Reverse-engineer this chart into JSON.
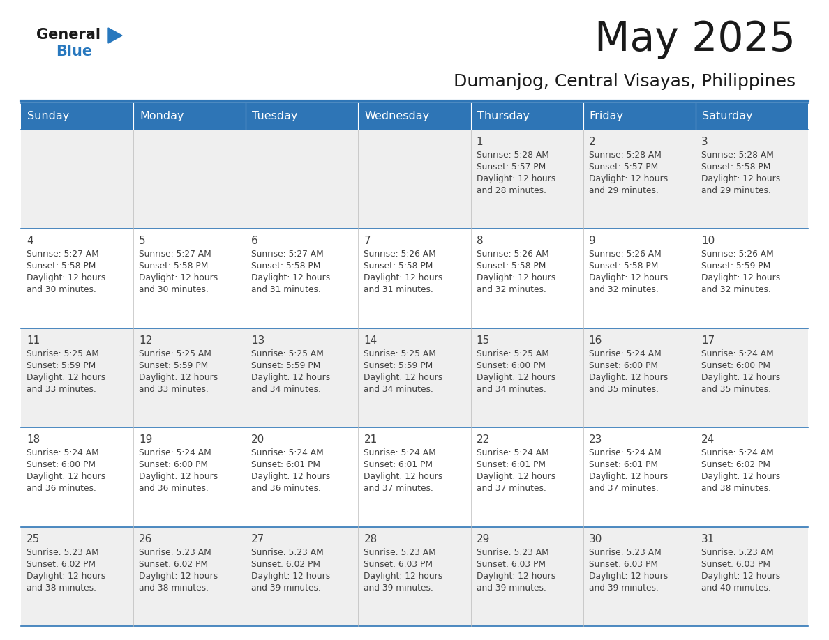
{
  "title": "May 2025",
  "subtitle": "Dumanjog, Central Visayas, Philippines",
  "header_bg": "#2E75B6",
  "header_text_color": "#FFFFFF",
  "day_names": [
    "Sunday",
    "Monday",
    "Tuesday",
    "Wednesday",
    "Thursday",
    "Friday",
    "Saturday"
  ],
  "row0_bg": "#EFEFEF",
  "row1_bg": "#FFFFFF",
  "cell_text_color": "#404040",
  "border_color": "#2E75B6",
  "title_color": "#1a1a1a",
  "subtitle_color": "#1a1a1a",
  "logo_general_color": "#1a1a1a",
  "logo_blue_color": "#2878BE",
  "calendar_data": [
    [
      null,
      null,
      null,
      null,
      {
        "day": 1,
        "sunrise": "5:28 AM",
        "sunset": "5:57 PM",
        "daylight": "12 hours and 28 minutes."
      },
      {
        "day": 2,
        "sunrise": "5:28 AM",
        "sunset": "5:57 PM",
        "daylight": "12 hours and 29 minutes."
      },
      {
        "day": 3,
        "sunrise": "5:28 AM",
        "sunset": "5:58 PM",
        "daylight": "12 hours and 29 minutes."
      }
    ],
    [
      {
        "day": 4,
        "sunrise": "5:27 AM",
        "sunset": "5:58 PM",
        "daylight": "12 hours and 30 minutes."
      },
      {
        "day": 5,
        "sunrise": "5:27 AM",
        "sunset": "5:58 PM",
        "daylight": "12 hours and 30 minutes."
      },
      {
        "day": 6,
        "sunrise": "5:27 AM",
        "sunset": "5:58 PM",
        "daylight": "12 hours and 31 minutes."
      },
      {
        "day": 7,
        "sunrise": "5:26 AM",
        "sunset": "5:58 PM",
        "daylight": "12 hours and 31 minutes."
      },
      {
        "day": 8,
        "sunrise": "5:26 AM",
        "sunset": "5:58 PM",
        "daylight": "12 hours and 32 minutes."
      },
      {
        "day": 9,
        "sunrise": "5:26 AM",
        "sunset": "5:58 PM",
        "daylight": "12 hours and 32 minutes."
      },
      {
        "day": 10,
        "sunrise": "5:26 AM",
        "sunset": "5:59 PM",
        "daylight": "12 hours and 32 minutes."
      }
    ],
    [
      {
        "day": 11,
        "sunrise": "5:25 AM",
        "sunset": "5:59 PM",
        "daylight": "12 hours and 33 minutes."
      },
      {
        "day": 12,
        "sunrise": "5:25 AM",
        "sunset": "5:59 PM",
        "daylight": "12 hours and 33 minutes."
      },
      {
        "day": 13,
        "sunrise": "5:25 AM",
        "sunset": "5:59 PM",
        "daylight": "12 hours and 34 minutes."
      },
      {
        "day": 14,
        "sunrise": "5:25 AM",
        "sunset": "5:59 PM",
        "daylight": "12 hours and 34 minutes."
      },
      {
        "day": 15,
        "sunrise": "5:25 AM",
        "sunset": "6:00 PM",
        "daylight": "12 hours and 34 minutes."
      },
      {
        "day": 16,
        "sunrise": "5:24 AM",
        "sunset": "6:00 PM",
        "daylight": "12 hours and 35 minutes."
      },
      {
        "day": 17,
        "sunrise": "5:24 AM",
        "sunset": "6:00 PM",
        "daylight": "12 hours and 35 minutes."
      }
    ],
    [
      {
        "day": 18,
        "sunrise": "5:24 AM",
        "sunset": "6:00 PM",
        "daylight": "12 hours and 36 minutes."
      },
      {
        "day": 19,
        "sunrise": "5:24 AM",
        "sunset": "6:00 PM",
        "daylight": "12 hours and 36 minutes."
      },
      {
        "day": 20,
        "sunrise": "5:24 AM",
        "sunset": "6:01 PM",
        "daylight": "12 hours and 36 minutes."
      },
      {
        "day": 21,
        "sunrise": "5:24 AM",
        "sunset": "6:01 PM",
        "daylight": "12 hours and 37 minutes."
      },
      {
        "day": 22,
        "sunrise": "5:24 AM",
        "sunset": "6:01 PM",
        "daylight": "12 hours and 37 minutes."
      },
      {
        "day": 23,
        "sunrise": "5:24 AM",
        "sunset": "6:01 PM",
        "daylight": "12 hours and 37 minutes."
      },
      {
        "day": 24,
        "sunrise": "5:24 AM",
        "sunset": "6:02 PM",
        "daylight": "12 hours and 38 minutes."
      }
    ],
    [
      {
        "day": 25,
        "sunrise": "5:23 AM",
        "sunset": "6:02 PM",
        "daylight": "12 hours and 38 minutes."
      },
      {
        "day": 26,
        "sunrise": "5:23 AM",
        "sunset": "6:02 PM",
        "daylight": "12 hours and 38 minutes."
      },
      {
        "day": 27,
        "sunrise": "5:23 AM",
        "sunset": "6:02 PM",
        "daylight": "12 hours and 39 minutes."
      },
      {
        "day": 28,
        "sunrise": "5:23 AM",
        "sunset": "6:03 PM",
        "daylight": "12 hours and 39 minutes."
      },
      {
        "day": 29,
        "sunrise": "5:23 AM",
        "sunset": "6:03 PM",
        "daylight": "12 hours and 39 minutes."
      },
      {
        "day": 30,
        "sunrise": "5:23 AM",
        "sunset": "6:03 PM",
        "daylight": "12 hours and 39 minutes."
      },
      {
        "day": 31,
        "sunrise": "5:23 AM",
        "sunset": "6:03 PM",
        "daylight": "12 hours and 40 minutes."
      }
    ]
  ]
}
